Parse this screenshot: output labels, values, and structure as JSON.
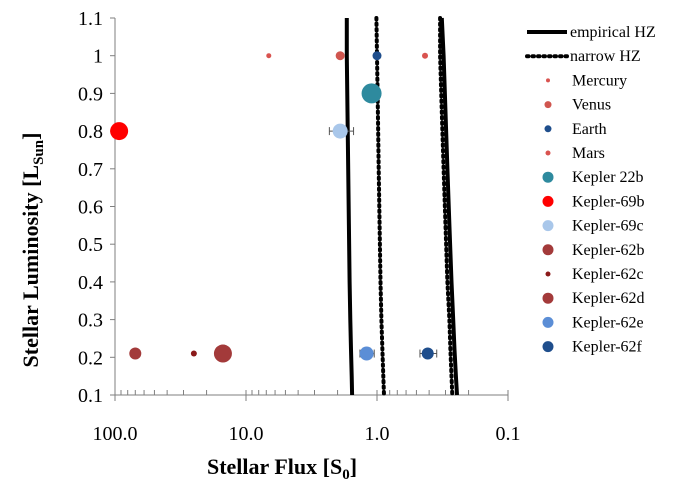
{
  "chart_data": {
    "type": "scatter",
    "xlabel": "Stellar Flux [S",
    "xlabel_sub": "0",
    "xlabel_end": "]",
    "ylabel": "Stellar Luminosity [L",
    "ylabel_sub": "Sun",
    "ylabel_end": "]",
    "x_scale": "log",
    "x_reversed": true,
    "xlim": [
      100,
      0.1
    ],
    "ylim": [
      0.1,
      1.1
    ],
    "x_ticks": [
      {
        "value": 100,
        "label": "100.0"
      },
      {
        "value": 10,
        "label": "10.0"
      },
      {
        "value": 1,
        "label": "1.0"
      },
      {
        "value": 0.1,
        "label": "0.1"
      }
    ],
    "y_ticks": [
      {
        "value": 0.1,
        "label": "0.1"
      },
      {
        "value": 0.2,
        "label": "0.2"
      },
      {
        "value": 0.3,
        "label": "0.3"
      },
      {
        "value": 0.4,
        "label": "0.4"
      },
      {
        "value": 0.5,
        "label": "0.5"
      },
      {
        "value": 0.6,
        "label": "0.6"
      },
      {
        "value": 0.7,
        "label": "0.7"
      },
      {
        "value": 0.8,
        "label": "0.8"
      },
      {
        "value": 0.9,
        "label": "0.9"
      },
      {
        "value": 1,
        "label": "1"
      },
      {
        "value": 1.1,
        "label": "1.1"
      }
    ],
    "grid": false,
    "legend_position": "right",
    "hz_lines": [
      {
        "name": "empirical HZ",
        "style": "solid",
        "color": "#000000",
        "points": [
          [
            1.7,
            1.1
          ],
          [
            1.7,
            1.0
          ],
          [
            1.68,
            0.85
          ],
          [
            1.66,
            0.7
          ],
          [
            1.64,
            0.55
          ],
          [
            1.62,
            0.4
          ],
          [
            1.6,
            0.3
          ],
          [
            1.58,
            0.22
          ],
          [
            1.56,
            0.15
          ],
          [
            1.55,
            0.1
          ]
        ]
      },
      {
        "name": "narrow HZ",
        "style": "dotted",
        "color": "#000000",
        "points": [
          [
            1.01,
            1.1
          ],
          [
            1.0,
            1.0
          ],
          [
            0.985,
            0.85
          ],
          [
            0.97,
            0.7
          ],
          [
            0.955,
            0.55
          ],
          [
            0.94,
            0.4
          ],
          [
            0.925,
            0.3
          ],
          [
            0.91,
            0.22
          ],
          [
            0.895,
            0.15
          ],
          [
            0.885,
            0.1
          ]
        ]
      },
      {
        "name": "narrow HZ outer",
        "style": "dotted",
        "color": "#000000",
        "points": [
          [
            0.33,
            1.1
          ],
          [
            0.33,
            1.0
          ],
          [
            0.32,
            0.85
          ],
          [
            0.31,
            0.7
          ],
          [
            0.3,
            0.55
          ],
          [
            0.29,
            0.4
          ],
          [
            0.28,
            0.3
          ],
          [
            0.275,
            0.22
          ],
          [
            0.27,
            0.15
          ],
          [
            0.266,
            0.1
          ]
        ]
      },
      {
        "name": "empirical HZ outer",
        "style": "solid",
        "color": "#000000",
        "points": [
          [
            0.32,
            1.1
          ],
          [
            0.31,
            1.0
          ],
          [
            0.3,
            0.85
          ],
          [
            0.29,
            0.7
          ],
          [
            0.28,
            0.55
          ],
          [
            0.27,
            0.4
          ],
          [
            0.262,
            0.3
          ],
          [
            0.256,
            0.22
          ],
          [
            0.25,
            0.15
          ],
          [
            0.245,
            0.1
          ]
        ]
      }
    ],
    "series": [
      {
        "name": "Mercury",
        "color": "#d9534f",
        "size": 2.5,
        "points": [
          {
            "x": 6.7,
            "y": 1.0
          }
        ]
      },
      {
        "name": "Venus",
        "color": "#d0564f",
        "size": 4.5,
        "points": [
          {
            "x": 1.91,
            "y": 1.0
          }
        ]
      },
      {
        "name": "Earth",
        "color": "#1f4e8c",
        "size": 4.5,
        "points": [
          {
            "x": 1.0,
            "y": 1.0
          }
        ]
      },
      {
        "name": "Mars",
        "color": "#d9534f",
        "size": 3,
        "points": [
          {
            "x": 0.43,
            "y": 1.0
          }
        ]
      },
      {
        "name": "Kepler 22b",
        "color": "#2e8a9e",
        "size": 10,
        "points": [
          {
            "x": 1.1,
            "y": 0.9
          }
        ]
      },
      {
        "name": "Kepler-69b",
        "color": "#ff0000",
        "size": 9,
        "points": [
          {
            "x": 93,
            "y": 0.8
          }
        ]
      },
      {
        "name": "Kepler-69c",
        "color": "#a9c7ea",
        "size": 7.5,
        "points": [
          {
            "x": 1.91,
            "y": 0.8,
            "xerr_low": 0.4,
            "xerr_high": 0.4
          }
        ]
      },
      {
        "name": "Kepler-62b",
        "color": "#a33a3a",
        "size": 6,
        "points": [
          {
            "x": 70,
            "y": 0.21
          }
        ]
      },
      {
        "name": "Kepler-62c",
        "color": "#8b1a1a",
        "size": 3,
        "points": [
          {
            "x": 25,
            "y": 0.21
          }
        ]
      },
      {
        "name": "Kepler-62d",
        "color": "#a33a3a",
        "size": 9,
        "points": [
          {
            "x": 15,
            "y": 0.21
          }
        ]
      },
      {
        "name": "Kepler-62e",
        "color": "#5b8ed6",
        "size": 7,
        "points": [
          {
            "x": 1.2,
            "y": 0.21,
            "xerr_low": 0.15,
            "xerr_high": 0.15
          }
        ]
      },
      {
        "name": "Kepler-62f",
        "color": "#1f4e8c",
        "size": 6,
        "points": [
          {
            "x": 0.41,
            "y": 0.21,
            "xerr_low": 0.06,
            "xerr_high": 0.06
          }
        ]
      }
    ],
    "legend": [
      {
        "label": "empirical HZ",
        "kind": "line",
        "style": "solid"
      },
      {
        "label": "narrow HZ",
        "kind": "line",
        "style": "dotted"
      },
      {
        "label": "Mercury",
        "kind": "marker",
        "color": "#d9534f",
        "size": 2
      },
      {
        "label": "Venus",
        "kind": "marker",
        "color": "#d0564f",
        "size": 3.5
      },
      {
        "label": "Earth",
        "kind": "marker",
        "color": "#1f4e8c",
        "size": 3.5
      },
      {
        "label": "Mars",
        "kind": "marker",
        "color": "#d9534f",
        "size": 2.5
      },
      {
        "label": "Kepler 22b",
        "kind": "marker",
        "color": "#2e8a9e",
        "size": 5.5
      },
      {
        "label": "Kepler-69b",
        "kind": "marker",
        "color": "#ff0000",
        "size": 5.5
      },
      {
        "label": "Kepler-69c",
        "kind": "marker",
        "color": "#a9c7ea",
        "size": 5.5
      },
      {
        "label": "Kepler-62b",
        "kind": "marker",
        "color": "#a33a3a",
        "size": 5.5
      },
      {
        "label": "Kepler-62c",
        "kind": "marker",
        "color": "#8b1a1a",
        "size": 2.5
      },
      {
        "label": "Kepler-62d",
        "kind": "marker",
        "color": "#a33a3a",
        "size": 5.5
      },
      {
        "label": "Kepler-62e",
        "kind": "marker",
        "color": "#5b8ed6",
        "size": 5.5
      },
      {
        "label": "Kepler-62f",
        "kind": "marker",
        "color": "#1f4e8c",
        "size": 5.5
      }
    ]
  }
}
